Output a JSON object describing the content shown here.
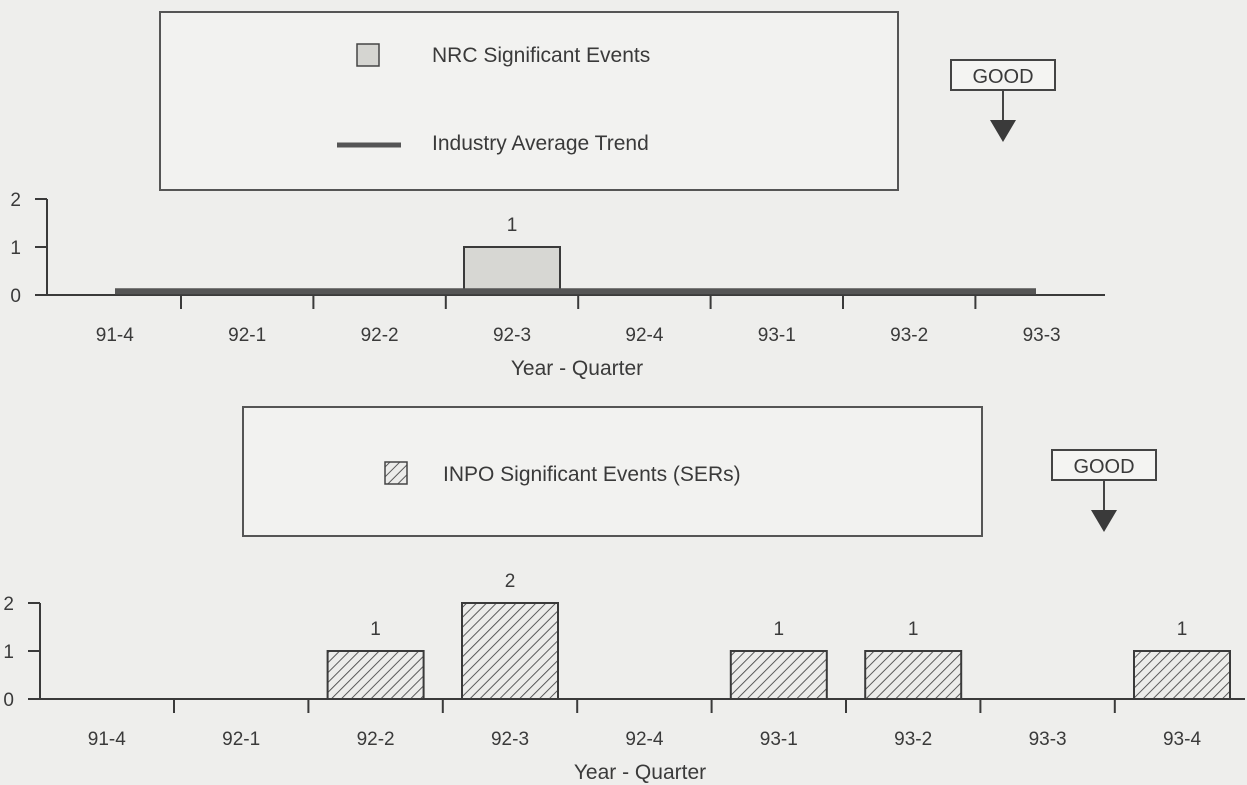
{
  "good_indicator_text": "GOOD",
  "colors": {
    "background": "#eeeeec",
    "ink": "#3a3a3a",
    "bar_fill": "#d7d7d3",
    "trend_line": "#555555"
  },
  "chart_data": [
    {
      "type": "bar",
      "title": "",
      "legend": [
        {
          "label": "NRC Significant Events",
          "marker": "gray-square"
        },
        {
          "label": "Industry Average Trend",
          "marker": "thick-line"
        }
      ],
      "xlabel": "Year - Quarter",
      "ylabel": "",
      "categories": [
        "91-4",
        "92-1",
        "92-2",
        "92-3",
        "92-4",
        "93-1",
        "93-2",
        "93-3"
      ],
      "series": [
        {
          "name": "NRC Significant Events",
          "type": "bar",
          "values": [
            0,
            0,
            0,
            1,
            0,
            0,
            0,
            0
          ]
        },
        {
          "name": "Industry Average Trend",
          "type": "line",
          "values": [
            0.1,
            0.1,
            0.1,
            0.1,
            0.1,
            0.1,
            0.1,
            0.1
          ]
        }
      ],
      "data_labels": [
        null,
        null,
        null,
        "1",
        null,
        null,
        null,
        null
      ],
      "ylim": [
        0,
        2
      ],
      "yticks": [
        0,
        1,
        2
      ],
      "grid": false,
      "legend_position": "top-center",
      "good_direction": "down"
    },
    {
      "type": "bar",
      "title": "",
      "legend": [
        {
          "label": "INPO Significant Events (SERs)",
          "marker": "hatched-square"
        }
      ],
      "xlabel": "Year - Quarter",
      "ylabel": "",
      "categories": [
        "91-4",
        "92-1",
        "92-2",
        "92-3",
        "92-4",
        "93-1",
        "93-2",
        "93-3",
        "93-4"
      ],
      "series": [
        {
          "name": "INPO Significant Events (SERs)",
          "type": "bar",
          "values": [
            0,
            0,
            1,
            2,
            0,
            1,
            1,
            0,
            1
          ]
        }
      ],
      "data_labels": [
        null,
        null,
        "1",
        "2",
        null,
        "1",
        "1",
        null,
        "1"
      ],
      "ylim": [
        0,
        2
      ],
      "yticks": [
        0,
        1,
        2
      ],
      "grid": false,
      "legend_position": "top-center",
      "good_direction": "down"
    }
  ]
}
